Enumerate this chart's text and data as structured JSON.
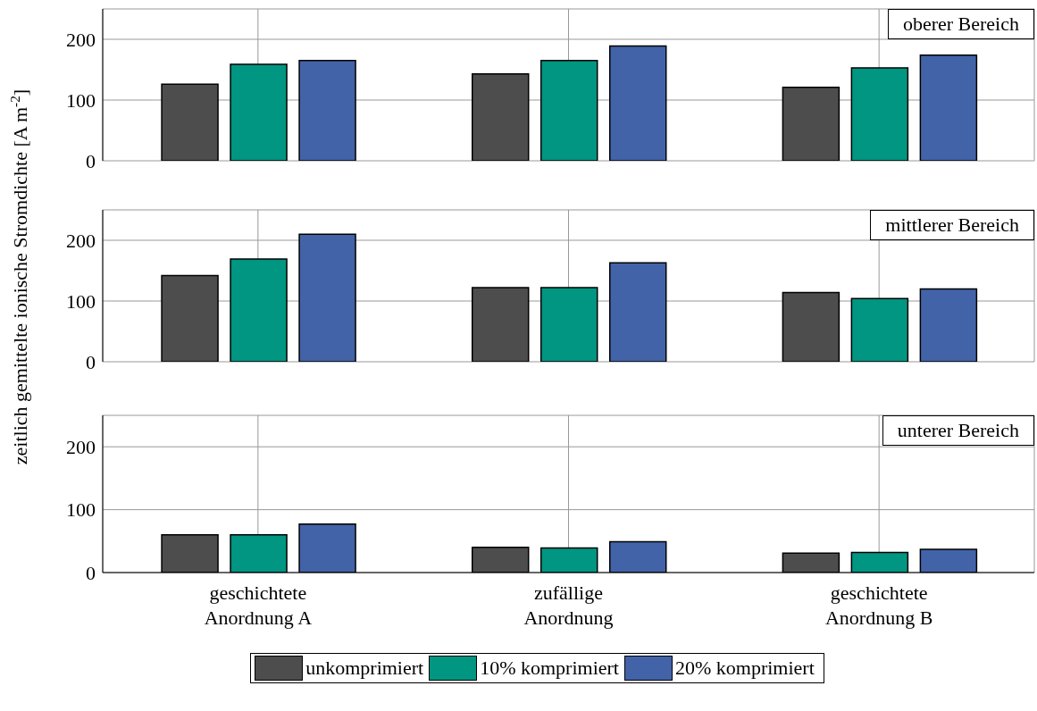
{
  "chart_data": [
    {
      "type": "bar",
      "categories": [
        null,
        null,
        null
      ],
      "ylim": [
        0,
        250
      ],
      "yticks": [
        0,
        100,
        200
      ],
      "grid": true,
      "tick_labels": "y",
      "annotations": [
        "oberer Bereich"
      ],
      "series": [
        {
          "color": "#4d4d4d",
          "values": [
            126,
            143,
            121
          ]
        },
        {
          "color": "#009681",
          "values": [
            159,
            165,
            153
          ]
        },
        {
          "color": "#4363a8",
          "values": [
            165,
            189,
            174
          ]
        }
      ]
    },
    {
      "type": "bar",
      "categories": [
        null,
        null,
        null
      ],
      "ylim": [
        0,
        250
      ],
      "yticks": [
        0,
        100,
        200
      ],
      "grid": true,
      "tick_labels": "y",
      "annotations": [
        "mittlerer Bereich"
      ],
      "ylabel": "zeitlich gemittelte ionische Stromdichte  [A m$^{-2}$]",
      "series": [
        {
          "color": "#4d4d4d",
          "values": [
            142,
            122,
            114
          ]
        },
        {
          "color": "#009681",
          "values": [
            169,
            122,
            104
          ]
        },
        {
          "color": "#4363a8",
          "values": [
            210,
            163,
            120
          ]
        }
      ]
    },
    {
      "type": "bar",
      "categories": [
        "geschichtete\nAnordnung A",
        "zufällige\nAnordnung",
        "geschichtete\nAnordnung B"
      ],
      "ylim": [
        0,
        250
      ],
      "yticks": [
        0,
        100,
        200
      ],
      "grid": true,
      "annotations": [
        "unterer Bereich"
      ],
      "legend": "bottom",
      "series": [
        {
          "name": "unkomprimiert",
          "color": "#4d4d4d",
          "values": [
            60,
            40,
            31
          ]
        },
        {
          "name": "10% komprimiert",
          "color": "#009681",
          "values": [
            60,
            39,
            32
          ]
        },
        {
          "name": "20% komprimiert",
          "color": "#4363a8",
          "values": [
            77,
            49,
            37
          ]
        }
      ]
    }
  ]
}
